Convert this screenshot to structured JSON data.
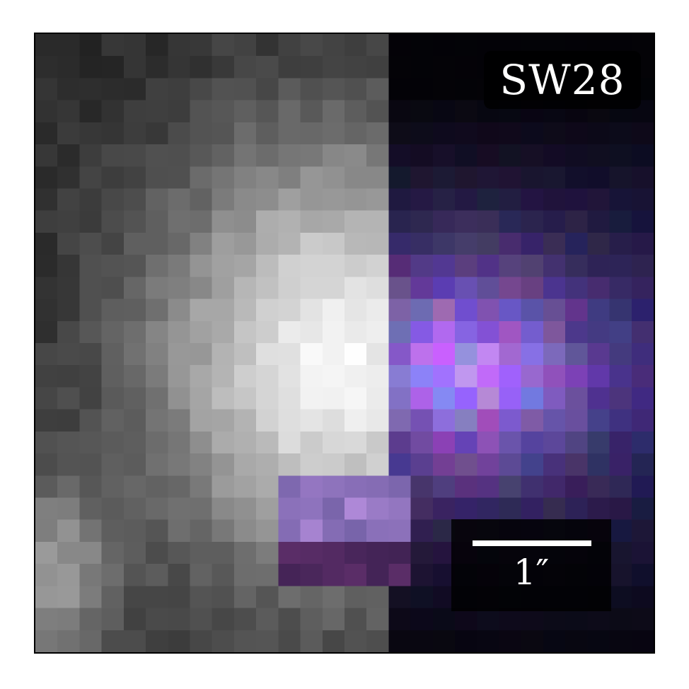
{
  "image": {
    "label": "SW28",
    "scalebar_label": "1″"
  }
}
